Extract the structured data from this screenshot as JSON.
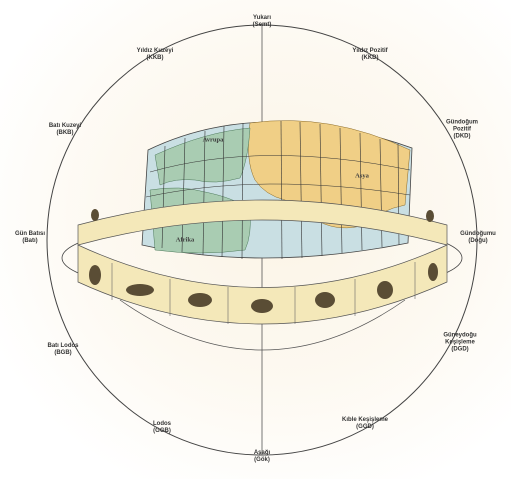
{
  "labels": {
    "top": {
      "line1": "Yukarı",
      "line2": "(Semt)"
    },
    "bottom": {
      "line1": "Aşağı",
      "line2": "(Gök)"
    },
    "upper_left": {
      "line1": "Yıldız Kuzeyi",
      "line2": "(KKB)"
    },
    "upper_right": {
      "line1": "Yıldız Pozitif",
      "line2": "(KKD)"
    },
    "left_upper": {
      "line1": "Batı Kuzeyi",
      "line2": "(BKB)"
    },
    "right_upper": {
      "line1": "Gündoğum",
      "line2": "Pozitif",
      "line3": "(DKD)"
    },
    "left_mid": {
      "line1": "Gün Batısı",
      "line2": "(Batı)"
    },
    "right_mid": {
      "line1": "Gündoğumu",
      "line2": "(Doğu)"
    },
    "left_lower": {
      "line1": "Batı Lodos",
      "line2": "(BGB)"
    },
    "right_lower": {
      "line1": "Güneydoğu",
      "line2": "Keşişleme",
      "line3": "(DGD)"
    },
    "lower_left": {
      "line1": "Lodos",
      "line2": "(GGB)"
    },
    "lower_right": {
      "line1": "Kıble Keşişleme",
      "line2": "(GGD)"
    }
  },
  "continents": {
    "europe": "Avrupa",
    "asia": "Asya",
    "africa": "Afrika"
  },
  "colors": {
    "ocean": "#c9dfe3",
    "asia": "#f0cf86",
    "europe_africa": "#a9ccb2",
    "band": "#f4e8b9",
    "lines": "#3a3a3a"
  }
}
